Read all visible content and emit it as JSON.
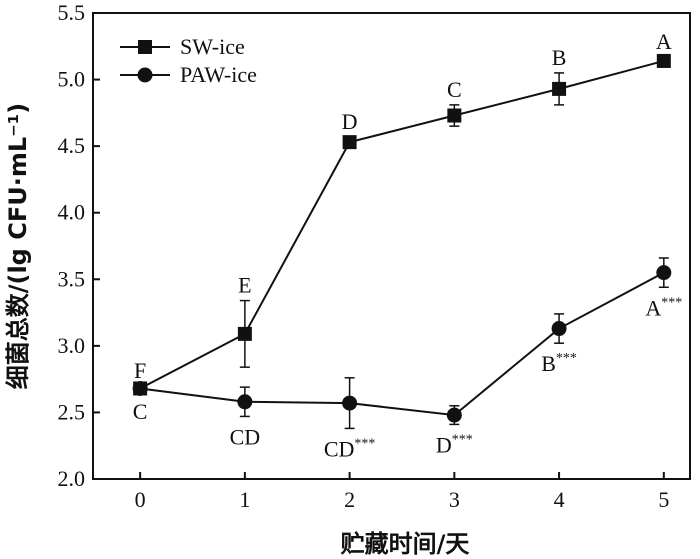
{
  "chart_data": {
    "type": "line",
    "xlabel": "贮藏时间/天",
    "ylabel": "细菌总数/(lg CFU·mL⁻¹)",
    "x": [
      0,
      1,
      2,
      3,
      4,
      5
    ],
    "xlim": [
      -0.45,
      5.25
    ],
    "ylim": [
      2.0,
      5.5
    ],
    "xticks": [
      "0",
      "1",
      "2",
      "3",
      "4",
      "5"
    ],
    "yticks": [
      "2.0",
      "2.5",
      "3.0",
      "3.5",
      "4.0",
      "4.5",
      "5.0",
      "5.5"
    ],
    "legend_position": "top-left",
    "series": [
      {
        "name": "SW-ice",
        "marker": "square",
        "values": [
          2.68,
          3.09,
          4.53,
          4.73,
          4.93,
          5.14
        ],
        "errors": [
          0.02,
          0.25,
          0.04,
          0.08,
          0.12,
          0.03
        ],
        "labels": [
          "F",
          "E",
          "D",
          "C",
          "B",
          "A"
        ],
        "label_sup": [
          "",
          "",
          "",
          "",
          "",
          ""
        ],
        "label_side": "above"
      },
      {
        "name": "PAW-ice",
        "marker": "circle",
        "values": [
          2.68,
          2.58,
          2.57,
          2.48,
          3.13,
          3.55
        ],
        "errors": [
          0.02,
          0.11,
          0.19,
          0.07,
          0.11,
          0.11
        ],
        "labels": [
          "C",
          "CD",
          "CD",
          "D",
          "B",
          "A"
        ],
        "label_sup": [
          "",
          "",
          "***",
          "***",
          "***",
          "***"
        ],
        "label_side": "below"
      }
    ]
  }
}
